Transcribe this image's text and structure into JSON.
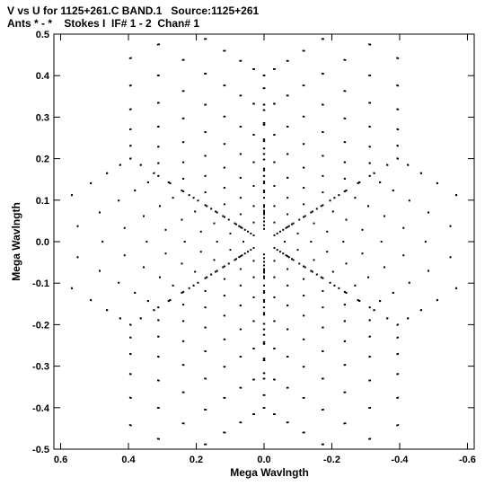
{
  "chart_data": {
    "type": "scatter",
    "title": "V vs U for 1125+261.C BAND.1   Source:1125+261",
    "subtitle": "Ants * - *    Stokes I  IF# 1 - 2  Chan# 1",
    "xlabel": "Mega Wavlngth",
    "ylabel": "Mega Wavlngth",
    "xlim": [
      0.62,
      -0.62
    ],
    "ylim": [
      -0.5,
      0.5
    ],
    "xticks": [
      "0.6",
      "0.4",
      "0.2",
      "0.0",
      "-0.2",
      "-0.4",
      "-0.6"
    ],
    "yticks": [
      "0.5",
      "0.4",
      "0.3",
      "0.2",
      "0.1",
      "0.0",
      "-0.1",
      "-0.2",
      "-0.3",
      "-0.4",
      "-0.5"
    ],
    "grid": false,
    "pattern": "six-armed snapshot u-v coverage (star / snowflake), point-symmetric about origin",
    "arms": [
      {
        "name": "",
        "direction_deg": 88,
        "max_radius": 0.48
      },
      {
        "name": "",
        "direction_deg": 28,
        "max_radius": 0.57
      },
      {
        "name": "",
        "direction_deg": -32,
        "max_radius": 0.56
      }
    ],
    "marker_color": "#000000"
  }
}
